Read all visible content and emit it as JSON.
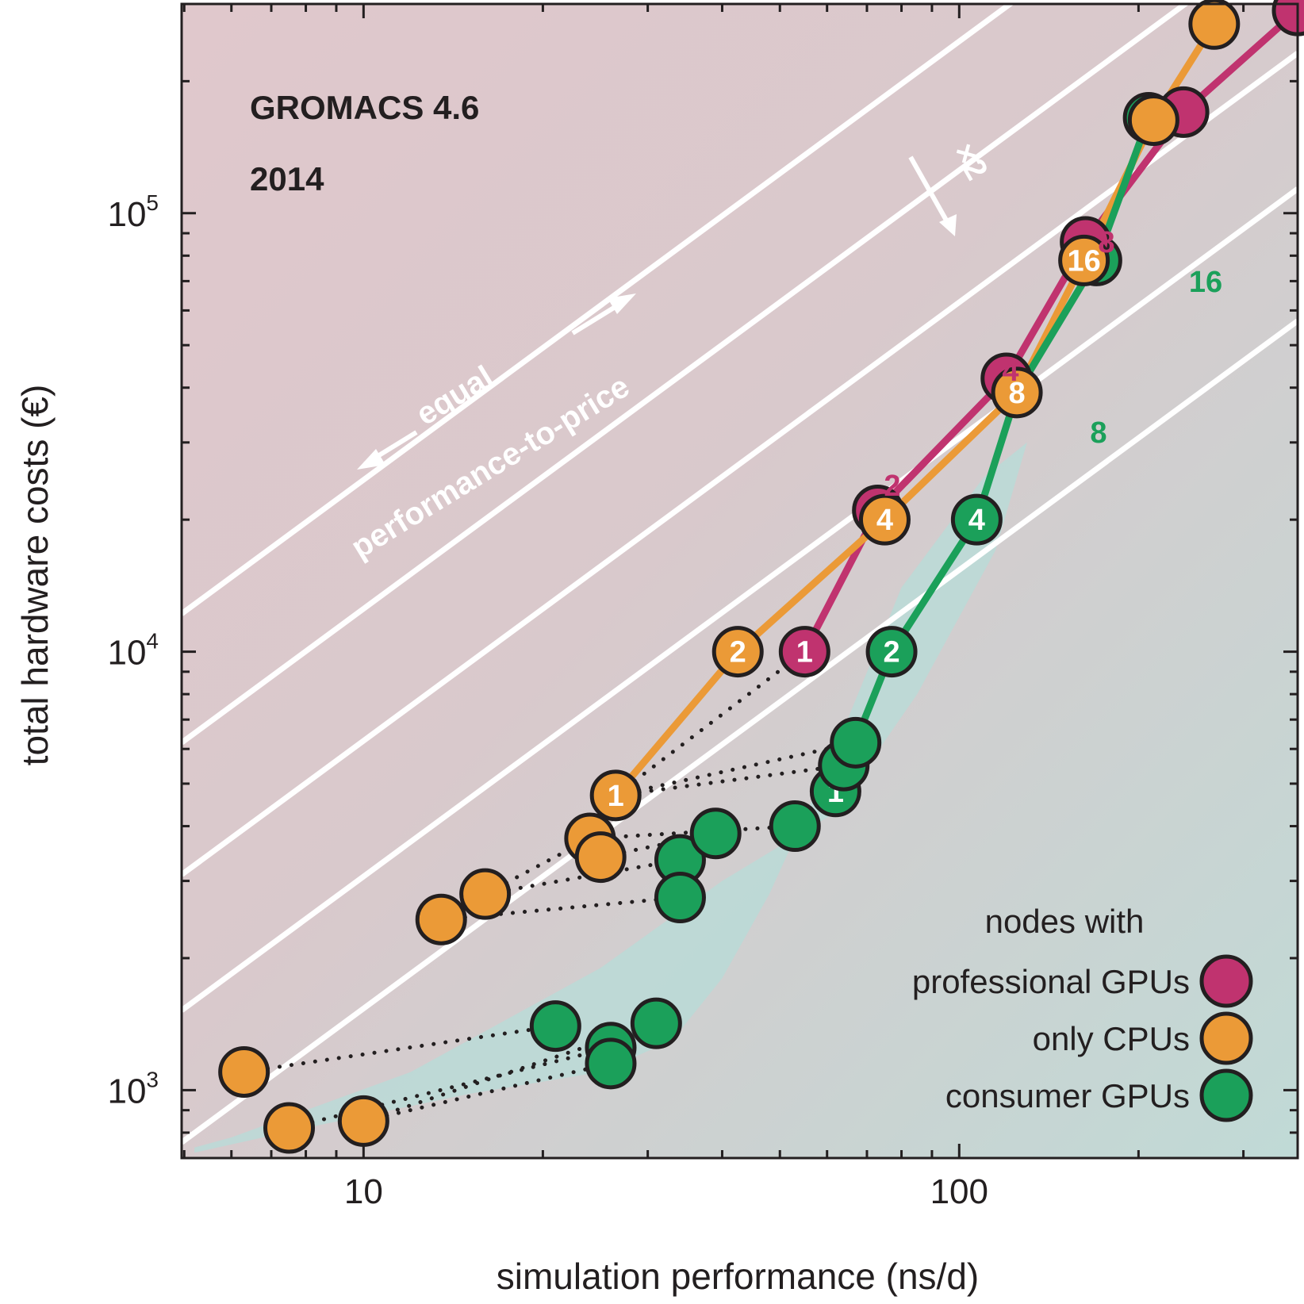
{
  "chart_data": {
    "type": "scatter",
    "title": "GROMACS 4.6",
    "subtitle": "2014",
    "xlabel": "simulation performance (ns/d)",
    "ylabel": "total hardware costs (€)",
    "x_scale": "log",
    "y_scale": "log",
    "xlim": [
      4.95,
      370
    ],
    "ylim": [
      700,
      300000
    ],
    "x_ticks": [
      {
        "value": 10,
        "label": "10"
      },
      {
        "value": 100,
        "label": "100"
      }
    ],
    "y_ticks": [
      {
        "value": 1000,
        "base": "10",
        "exp": "3"
      },
      {
        "value": 10000,
        "base": "10",
        "exp": "4"
      },
      {
        "value": 100000,
        "base": "10",
        "exp": "5"
      }
    ],
    "legend_title": "nodes with",
    "legend_position": "bottom-right",
    "series": [
      {
        "name": "professional GPUs",
        "color": "#c0336f",
        "line": [
          [
            55,
            10000
          ],
          [
            73,
            21000
          ],
          [
            120,
            42000
          ],
          [
            163,
            86000
          ],
          [
            238,
            170000
          ],
          [
            370,
            290000
          ]
        ],
        "points": [
          {
            "x": 55,
            "y": 10000,
            "label": "1"
          },
          {
            "x": 73,
            "y": 21000,
            "label": ""
          },
          {
            "x": 120,
            "y": 42000,
            "label": ""
          },
          {
            "x": 163,
            "y": 86000,
            "label": ""
          },
          {
            "x": 238,
            "y": 170000,
            "label": ""
          },
          {
            "x": 370,
            "y": 290000,
            "label": ""
          }
        ]
      },
      {
        "name": "only CPUs",
        "color": "#eb9a37",
        "line": [
          [
            26.5,
            4700
          ],
          [
            42.5,
            10000
          ],
          [
            75,
            20000
          ],
          [
            125,
            39000
          ],
          [
            162,
            78000
          ],
          [
            212,
            163000
          ],
          [
            268,
            270000
          ]
        ],
        "points": [
          {
            "x": 6.3,
            "y": 1100,
            "label": ""
          },
          {
            "x": 7.5,
            "y": 820,
            "label": ""
          },
          {
            "x": 10,
            "y": 850,
            "label": ""
          },
          {
            "x": 13.5,
            "y": 2450,
            "label": ""
          },
          {
            "x": 16,
            "y": 2800,
            "label": ""
          },
          {
            "x": 24,
            "y": 3750,
            "label": ""
          },
          {
            "x": 25,
            "y": 3400,
            "label": ""
          },
          {
            "x": 26.5,
            "y": 4700,
            "label": "1"
          },
          {
            "x": 42.5,
            "y": 10000,
            "label": "2"
          },
          {
            "x": 75,
            "y": 20000,
            "label": "4"
          },
          {
            "x": 125,
            "y": 39000,
            "label": "8"
          },
          {
            "x": 162,
            "y": 78000,
            "label": "16"
          },
          {
            "x": 212,
            "y": 163000,
            "label": ""
          },
          {
            "x": 268,
            "y": 270000,
            "label": ""
          }
        ]
      },
      {
        "name": "consumer GPUs",
        "color": "#1ba05a",
        "line": [
          [
            62,
            4800
          ],
          [
            77,
            10000
          ],
          [
            107,
            20000
          ],
          [
            125,
            39000
          ],
          [
            170,
            78000
          ],
          [
            208,
            165000
          ]
        ],
        "points": [
          {
            "x": 21,
            "y": 1400,
            "label": ""
          },
          {
            "x": 26,
            "y": 1250,
            "label": ""
          },
          {
            "x": 26,
            "y": 1150,
            "label": ""
          },
          {
            "x": 31,
            "y": 1420,
            "label": ""
          },
          {
            "x": 34,
            "y": 3350,
            "label": ""
          },
          {
            "x": 34,
            "y": 2750,
            "label": ""
          },
          {
            "x": 39,
            "y": 3850,
            "label": ""
          },
          {
            "x": 53,
            "y": 4000,
            "label": ""
          },
          {
            "x": 62,
            "y": 4800,
            "label": "1"
          },
          {
            "x": 64,
            "y": 5500,
            "label": ""
          },
          {
            "x": 67,
            "y": 6200,
            "label": ""
          },
          {
            "x": 77,
            "y": 10000,
            "label": "2"
          },
          {
            "x": 107,
            "y": 20000,
            "label": "4"
          },
          {
            "x": 170,
            "y": 78000,
            "label": ""
          },
          {
            "x": 208,
            "y": 165000,
            "label": ""
          }
        ]
      }
    ],
    "dotted_connections": [
      [
        [
          6.3,
          1100
        ],
        [
          21,
          1400
        ]
      ],
      [
        [
          7.5,
          820
        ],
        [
          26,
          1250
        ]
      ],
      [
        [
          10,
          850
        ],
        [
          31,
          1420
        ]
      ],
      [
        [
          10,
          850
        ],
        [
          26,
          1150
        ]
      ],
      [
        [
          16,
          2800
        ],
        [
          24,
          3750
        ]
      ],
      [
        [
          16,
          2800
        ],
        [
          34,
          3350
        ]
      ],
      [
        [
          13.5,
          2450
        ],
        [
          34,
          2750
        ]
      ],
      [
        [
          25,
          3400
        ],
        [
          39,
          3850
        ]
      ],
      [
        [
          24,
          3750
        ],
        [
          53,
          4000
        ]
      ],
      [
        [
          26.5,
          4700
        ],
        [
          64,
          5500
        ]
      ],
      [
        [
          26.5,
          4700
        ],
        [
          67,
          6200
        ]
      ],
      [
        [
          26.5,
          4700
        ],
        [
          55,
          10000
        ]
      ]
    ],
    "iso_lines": {
      "y_at_x_min": [
        12200,
        6200,
        3100,
        1520,
        760
      ],
      "slope_log": 1.0
    },
    "annotations": {
      "equal": "equal",
      "performance_to_price": "performance-to-price",
      "factor": "×2",
      "professional_counts": [
        "2",
        "4",
        "8"
      ],
      "consumer_counts": [
        "8",
        "16"
      ]
    }
  }
}
